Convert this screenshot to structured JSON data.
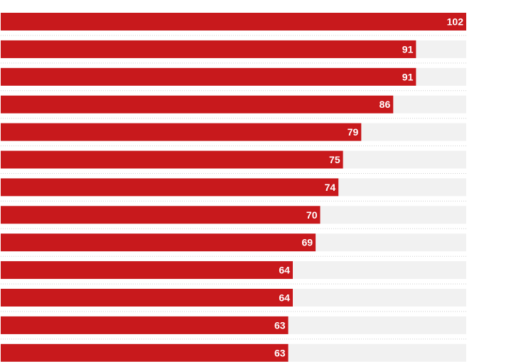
{
  "chart_data": {
    "type": "bar",
    "orientation": "horizontal",
    "values": [
      102,
      91,
      91,
      86,
      79,
      75,
      74,
      70,
      69,
      64,
      64,
      63,
      63
    ],
    "xlim": [
      0,
      102
    ],
    "data_labels": true,
    "grid": false,
    "legend": "none"
  },
  "colors": {
    "bar": "#c8191c",
    "track": "#f1f1f1",
    "separator": "#cfcfcf",
    "label": "#ffffff"
  }
}
